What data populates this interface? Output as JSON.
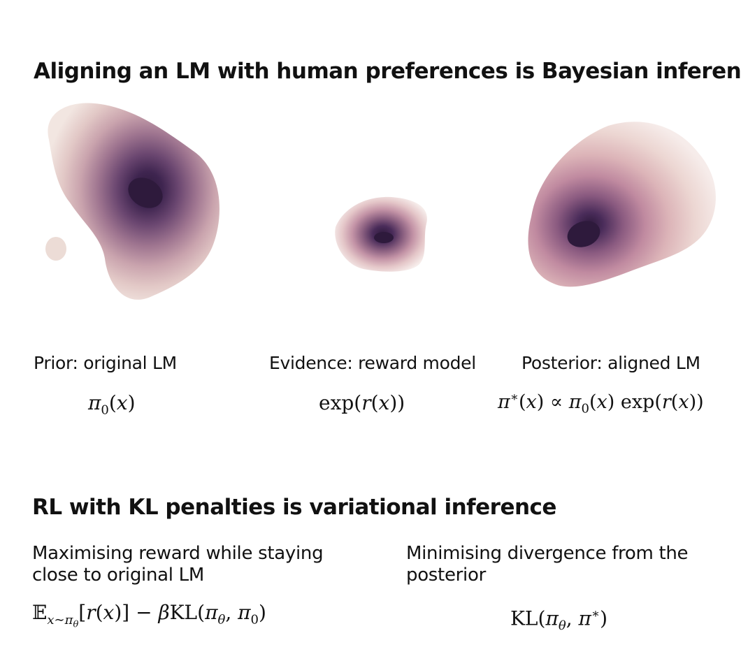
{
  "top_section": {
    "title": "Aligning an LM with human preferences is Bayesian inference",
    "panels": [
      {
        "label": "Prior: original LM",
        "formula": "π0(x)"
      },
      {
        "label": "Evidence: reward model",
        "formula": "exp(r(x))"
      },
      {
        "label": "Posterior: aligned LM",
        "formula": "π*(x) ∝ π0(x) exp(r(x))"
      }
    ]
  },
  "bottom_section": {
    "title": "RL with KL penalties is variational inference",
    "left": {
      "caption": "Maximising reward while staying close to original LM",
      "formula": "E_{x∼πθ}[r(x)] − βKL(πθ, π0)"
    },
    "right": {
      "caption": "Minimising divergence from the posterior",
      "formula": "KL(πθ, π*)"
    }
  },
  "colors": {
    "density_light": "#efe2dc",
    "density_dark": "#2e1a3c"
  }
}
